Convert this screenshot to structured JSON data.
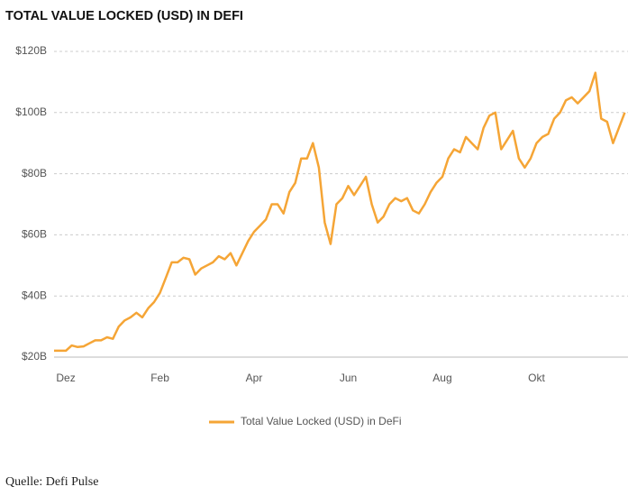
{
  "chart_data": {
    "type": "line",
    "title": "TOTAL VALUE LOCKED (USD) IN DEFI",
    "categories": [
      null,
      null,
      "Dez",
      null,
      null,
      null,
      null,
      null,
      null,
      null,
      null,
      null,
      null,
      null,
      null,
      null,
      null,
      null,
      "Feb",
      null,
      null,
      null,
      null,
      null,
      null,
      null,
      null,
      null,
      null,
      null,
      null,
      null,
      null,
      null,
      "Apr",
      null,
      null,
      null,
      null,
      null,
      null,
      null,
      null,
      null,
      null,
      null,
      null,
      null,
      null,
      null,
      "Jun",
      null,
      null,
      null,
      null,
      null,
      null,
      null,
      null,
      null,
      null,
      null,
      null,
      null,
      null,
      null,
      "Aug",
      null,
      null,
      null,
      null,
      null,
      null,
      null,
      null,
      null,
      null,
      null,
      null,
      null,
      null,
      null,
      "Okt",
      null,
      null,
      null,
      null,
      null,
      null,
      null,
      null,
      null,
      null,
      null,
      null,
      null,
      null,
      null
    ],
    "series": [
      {
        "name": "Total Value Locked (USD) in DeFi",
        "color": "#f5a536",
        "values": [
          22.1,
          22.1,
          22.1,
          23.8,
          23.3,
          23.5,
          24.5,
          25.5,
          25.5,
          26.5,
          26,
          30,
          32,
          33,
          34.5,
          33,
          36,
          38,
          41,
          46,
          51,
          51,
          52.5,
          52,
          47,
          49,
          50,
          51,
          53,
          52,
          54,
          50,
          54,
          58,
          61,
          63,
          65,
          70,
          70,
          67,
          74,
          77,
          85,
          85,
          90,
          82,
          64,
          57,
          70,
          72,
          76,
          73,
          76,
          79,
          70,
          64,
          66,
          70,
          72,
          71,
          72,
          68,
          67,
          70,
          74,
          77,
          79,
          85,
          88,
          87,
          92,
          90,
          88,
          95,
          99,
          100,
          88,
          91,
          94,
          85,
          82,
          85,
          90,
          92,
          93,
          98,
          100,
          104,
          105,
          103,
          105,
          107,
          113,
          98,
          97,
          90,
          95,
          100
        ]
      }
    ],
    "ylim": [
      20,
      120
    ],
    "yticks": [
      {
        "value": 20,
        "label": "$20B"
      },
      {
        "value": 40,
        "label": "$40B"
      },
      {
        "value": 60,
        "label": "$60B"
      },
      {
        "value": 80,
        "label": "$80B"
      },
      {
        "value": 100,
        "label": "$100B"
      },
      {
        "value": 120,
        "label": "$120B"
      }
    ],
    "grid": true,
    "legend": "bottom",
    "source": "Quelle: Defi Pulse"
  }
}
